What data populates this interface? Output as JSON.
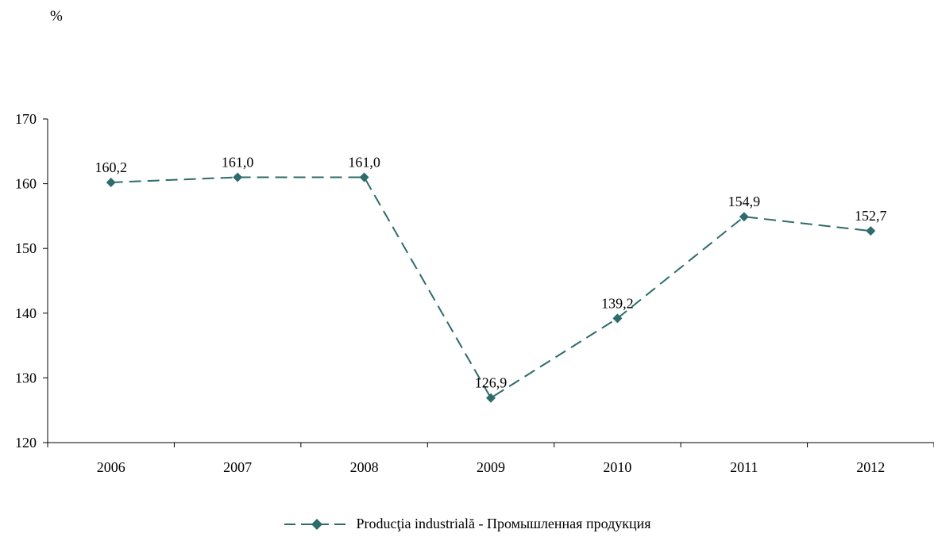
{
  "unit_label": "%",
  "colors": {
    "series": "#2e6b6b",
    "axis": "#000000"
  },
  "chart_data": {
    "type": "line",
    "title": "",
    "xlabel": "",
    "ylabel": "%",
    "ylim": [
      120,
      170
    ],
    "yticks": [
      "120",
      "130",
      "140",
      "150",
      "160",
      "170"
    ],
    "categories": [
      "2006",
      "2007",
      "2008",
      "2009",
      "2010",
      "2011",
      "2012"
    ],
    "series": [
      {
        "name": "Producţia industrială - Промышленная продукция",
        "values": [
          160.2,
          161.0,
          161.0,
          126.9,
          139.2,
          154.9,
          152.7
        ],
        "labels": [
          "160,2",
          "161,0",
          "161,0",
          "126,9",
          "139,2",
          "154,9",
          "152,7"
        ],
        "line_style": "dashed",
        "marker": "diamond"
      }
    ],
    "grid": false,
    "legend_position": "bottom"
  }
}
